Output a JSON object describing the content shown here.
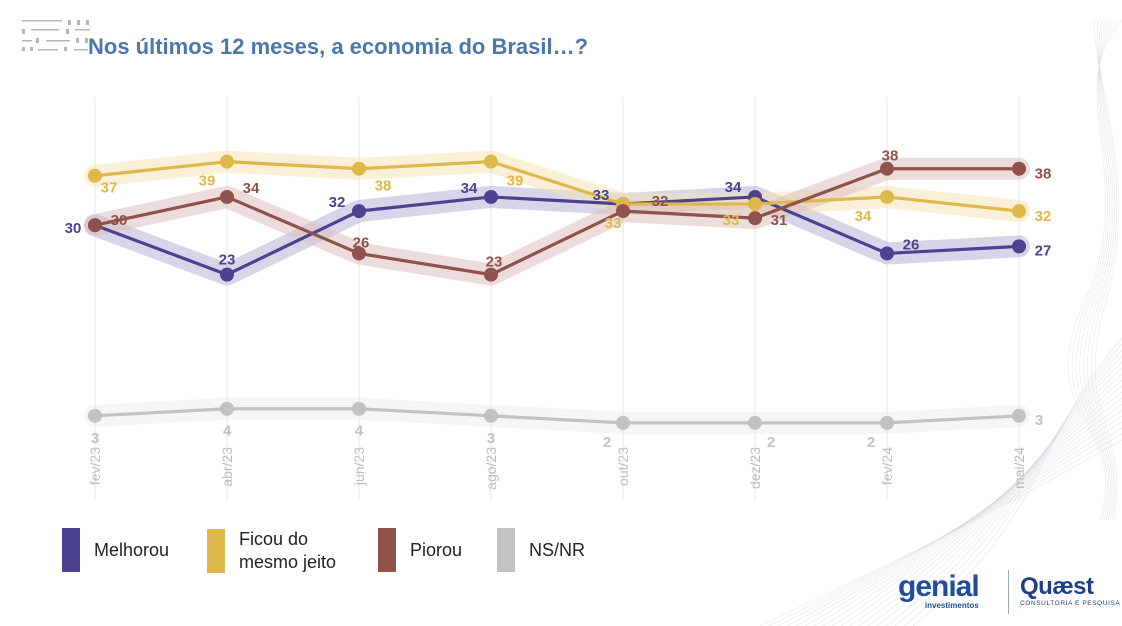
{
  "title": "Nos últimos 12 meses, a economia do Brasil…?",
  "chart_data": {
    "type": "line",
    "title": "Nos últimos 12 meses, a economia do Brasil…?",
    "xlabel": "",
    "ylabel": "",
    "categories": [
      "fev/23",
      "abr/23",
      "jun/23",
      "ago/23",
      "out/23",
      "dez/23",
      "fev/24",
      "mai/24"
    ],
    "ylim": [
      0,
      45
    ],
    "grid": "vertical",
    "legend_position": "bottom-left",
    "series": [
      {
        "name": "Melhorou",
        "color": "#4b4392",
        "band": "#b6b3d6",
        "values": [
          30,
          23,
          32,
          34,
          33,
          34,
          26,
          27
        ]
      },
      {
        "name": "Ficou do mesmo jeito",
        "color": "#e0b84a",
        "band": "#f5e3b6",
        "values": [
          37,
          39,
          38,
          39,
          33,
          33,
          34,
          32
        ]
      },
      {
        "name": "Piorou",
        "color": "#8f524c",
        "band": "#dcbfbd",
        "values": [
          30,
          34,
          26,
          23,
          32,
          31,
          38,
          38
        ]
      },
      {
        "name": "NS/NR",
        "color": "#c2c2c2",
        "band": "#ececec",
        "values": [
          3,
          4,
          4,
          3,
          2,
          2,
          2,
          3
        ]
      }
    ]
  },
  "legend": [
    {
      "label_lines": [
        "Melhorou"
      ],
      "color": "#4b4392"
    },
    {
      "label_lines": [
        "Ficou do",
        "mesmo jeito"
      ],
      "color": "#e0b84a"
    },
    {
      "label_lines": [
        "Piorou"
      ],
      "color": "#8f524c"
    },
    {
      "label_lines": [
        "NS/NR"
      ],
      "color": "#c2c2c2"
    }
  ],
  "logos": {
    "genial_word": "genial",
    "genial_sub": "investimentos",
    "quaest_word": "Quæst",
    "quaest_sub": "CONSULTORIA E PESQUISA"
  }
}
